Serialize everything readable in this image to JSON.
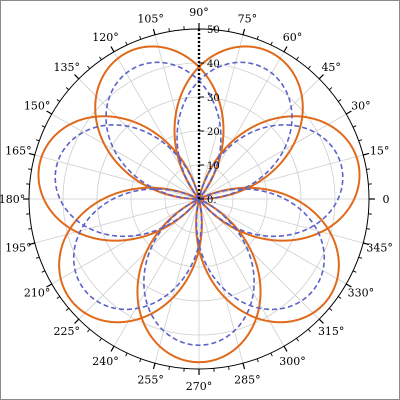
{
  "chart_data": {
    "type": "line",
    "projection": "polar",
    "title": "",
    "xlabel": "",
    "ylabel": "",
    "angle_unit": "degrees",
    "angle_zero": "right",
    "angle_direction": "counterclockwise",
    "theta_ticks": [
      0,
      15,
      30,
      45,
      60,
      75,
      90,
      105,
      120,
      135,
      150,
      165,
      180,
      195,
      210,
      225,
      240,
      255,
      270,
      285,
      300,
      315,
      330,
      345
    ],
    "theta_tick_labels": [
      "0",
      "15°",
      "30°",
      "45°",
      "60°",
      "75°",
      "90°",
      "105°",
      "120°",
      "135°",
      "150°",
      "165°",
      "180°",
      "195°",
      "210°",
      "225°",
      "240°",
      "255°",
      "270°",
      "285°",
      "300°",
      "315°",
      "330°",
      "345°"
    ],
    "r_ticks": [
      0,
      10,
      20,
      30,
      40,
      50
    ],
    "r_tick_labels": [
      "0.",
      "10",
      "20",
      "30",
      "40",
      "50"
    ],
    "rlim": [
      0,
      50
    ],
    "grid": true,
    "series": [
      {
        "equation": "r = 48 sin(1.4 θ), θ from 0 to 5π",
        "amplitude": 48,
        "frequency": 1.4,
        "theta_range_pi": [
          0,
          5
        ],
        "color": "#e06a1b",
        "line_style": "solid"
      },
      {
        "equation": "r = 43 sin(1.4 θ), θ from 0 to 5π",
        "amplitude": 43,
        "frequency": 1.4,
        "theta_range_pi": [
          0,
          5
        ],
        "color": "#5b62c8",
        "line_style": "dashed"
      }
    ]
  },
  "colors": {
    "grid": "#cfcfcf",
    "axis": "#000000",
    "frame": "#8a8a8a"
  }
}
